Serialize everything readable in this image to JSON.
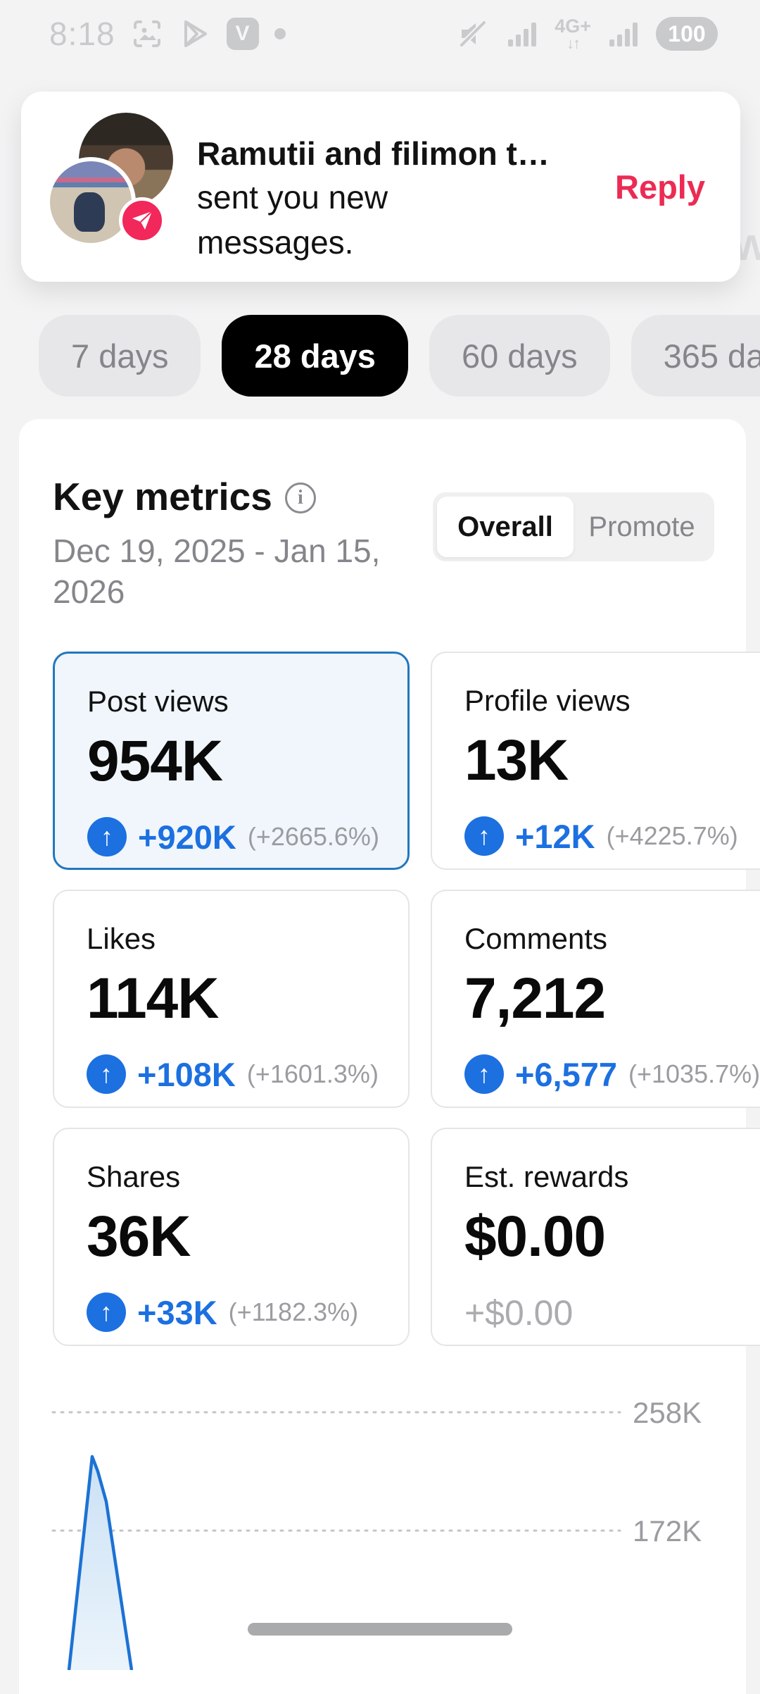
{
  "status_bar": {
    "time": "8:18",
    "network_type": "4G+",
    "network_arrows": "↓↑",
    "battery_level": "100",
    "left_icons": [
      "screenshot-icon",
      "play-store-icon",
      "v-app-icon",
      "notification-dot"
    ],
    "right_icons": [
      "mute-icon",
      "signal-icon",
      "4g-plus-icon",
      "signal-icon",
      "battery-pill"
    ]
  },
  "notification": {
    "title": "Ramutii and filimon t…",
    "body": "sent you new messages.",
    "action_label": "Reply",
    "badge_icon": "paper-plane-icon",
    "accent_color": "#EC2B54"
  },
  "background_fragment": "w",
  "period_tabs": {
    "items": [
      {
        "label": "7 days",
        "active": false
      },
      {
        "label": "28 days",
        "active": true
      },
      {
        "label": "60 days",
        "active": false
      },
      {
        "label": "365 days",
        "active": false
      }
    ]
  },
  "key_metrics": {
    "title": "Key metrics",
    "date_range": "Dec 19, 2025 - Jan 15, 2026",
    "toggle": {
      "options": [
        "Overall",
        "Promote"
      ],
      "selected": "Overall"
    },
    "cards": [
      {
        "label": "Post views",
        "value": "954K",
        "delta": "+920K",
        "percent": "(+2665.6%)",
        "selected": true,
        "positive": true
      },
      {
        "label": "Profile views",
        "value": "13K",
        "delta": "+12K",
        "percent": "(+4225.7%)",
        "selected": false,
        "positive": true
      },
      {
        "label": "Likes",
        "value": "114K",
        "delta": "+108K",
        "percent": "(+1601.3%)",
        "selected": false,
        "positive": true
      },
      {
        "label": "Comments",
        "value": "7,212",
        "delta": "+6,577",
        "percent": "(+1035.7%)",
        "selected": false,
        "positive": true
      },
      {
        "label": "Shares",
        "value": "36K",
        "delta": "+33K",
        "percent": "(+1182.3%)",
        "selected": false,
        "positive": true
      },
      {
        "label": "Est. rewards",
        "value": "$0.00",
        "delta": "+$0.00",
        "percent": "",
        "selected": false,
        "positive": false
      }
    ],
    "delta_color": "#1C70E0",
    "selected_card_border": "#2377BE"
  },
  "chart_data": {
    "type": "area",
    "metric": "Post views per day",
    "y_ticks_visible": [
      "258K",
      "172K"
    ],
    "peak_value_estimate": 226000,
    "visible_points_estimate": [
      {
        "position": "range start",
        "value": 0
      },
      {
        "position": "early peak",
        "value": 226000
      },
      {
        "position": "after peak",
        "value": 0
      }
    ],
    "line_color": "#1C72D4",
    "render": {
      "polyline": [
        [
          71,
          430
        ],
        [
          104,
          127
        ],
        [
          112,
          148
        ],
        [
          124,
          191
        ],
        [
          160,
          430
        ]
      ]
    }
  }
}
